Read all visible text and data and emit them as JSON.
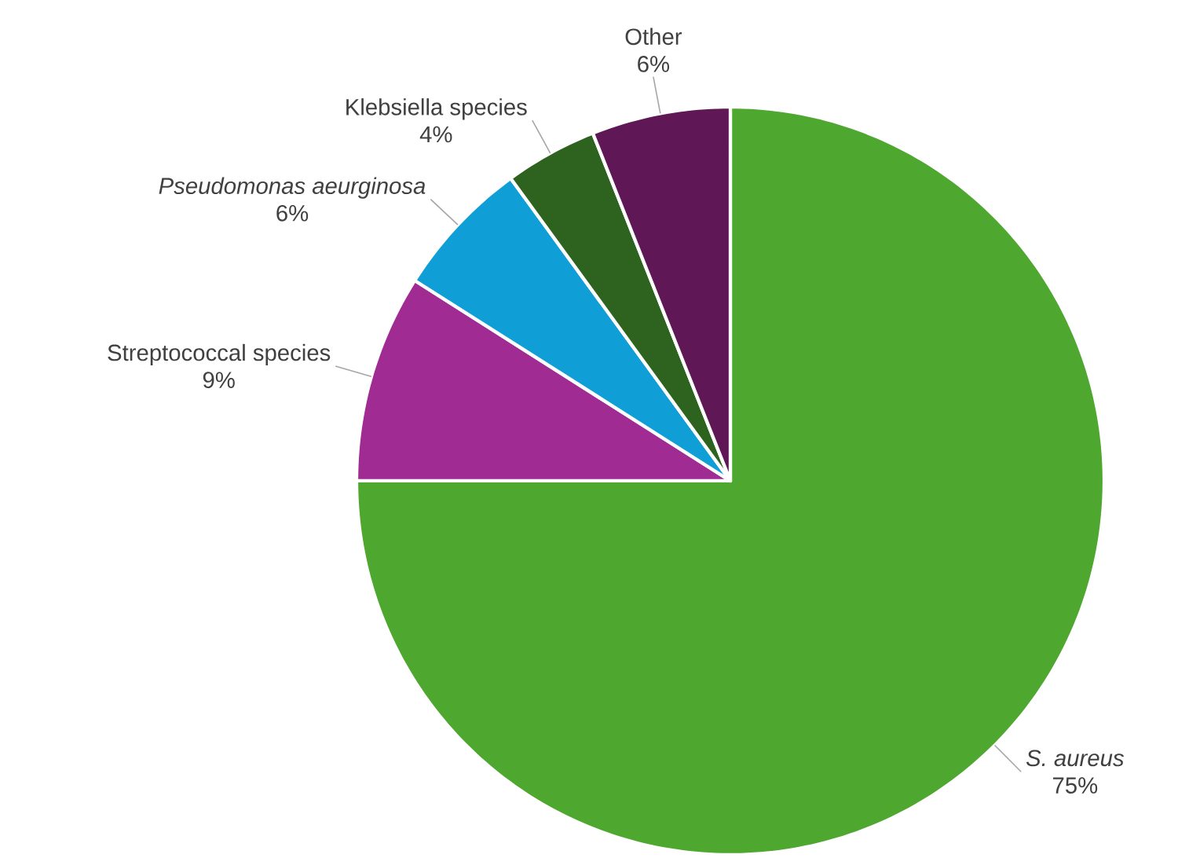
{
  "chart_data": {
    "type": "pie",
    "categories": [
      "*S. aureus*",
      "Streptococcal species",
      "*Pseudomonas aeurginosa*",
      "Klebsiella species",
      "Other"
    ],
    "values": [
      75,
      9,
      6,
      4,
      6
    ],
    "value_labels": [
      "75%",
      "9%",
      "6%",
      "4%",
      "6%"
    ],
    "colors": [
      "#4ea72e",
      "#a02b93",
      "#0f9ed5",
      "#2e631f",
      "#5f1855"
    ]
  }
}
